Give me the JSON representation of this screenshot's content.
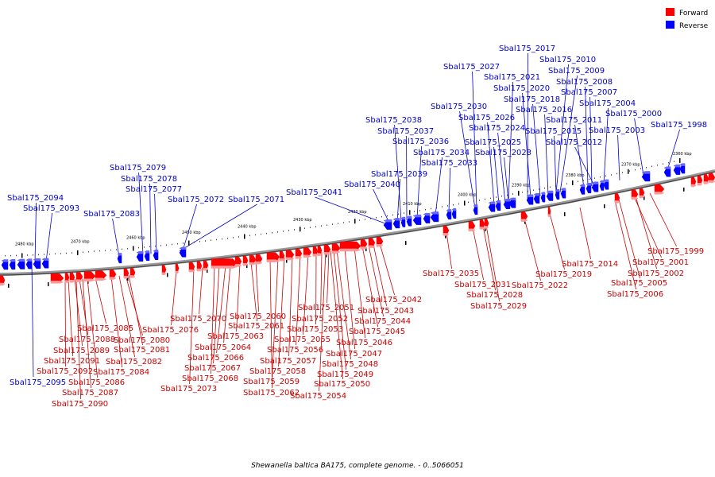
{
  "caption": "Shewanella baltica BA175, complete genome. - 0..5066051",
  "legend": [
    {
      "label": "Forward",
      "color": "#ff0000"
    },
    {
      "label": "Reverse",
      "color": "#0000ff"
    }
  ],
  "colors": {
    "forward": "#ff0000",
    "reverse": "#0000ff",
    "forward_label": "#cc0000",
    "reverse_label": "#0000cc",
    "backbone": "#808080"
  },
  "ticks": [
    "2360 kbp",
    "2370 kbp",
    "2380 kbp",
    "2390 kbp",
    "2400 kbp",
    "2410 kbp",
    "2420 kbp",
    "2430 kbp",
    "2440 kbp",
    "2450 kbp",
    "2460 kbp",
    "2470 kbp",
    "2480 kbp"
  ],
  "reverse_genes": [
    "Sbal175_1998",
    "Sbal175_2000",
    "Sbal175_2003",
    "Sbal175_2004",
    "Sbal175_2007",
    "Sbal175_2008",
    "Sbal175_2009",
    "Sbal175_2010",
    "Sbal175_2011",
    "Sbal175_2012",
    "Sbal175_2015",
    "Sbal175_2016",
    "Sbal175_2017",
    "Sbal175_2018",
    "Sbal175_2020",
    "Sbal175_2021",
    "Sbal175_2023",
    "Sbal175_2024",
    "Sbal175_2025",
    "Sbal175_2026",
    "Sbal175_2027",
    "Sbal175_2030",
    "Sbal175_2033",
    "Sbal175_2034",
    "Sbal175_2036",
    "Sbal175_2037",
    "Sbal175_2038",
    "Sbal175_2039",
    "Sbal175_2040",
    "Sbal175_2041",
    "Sbal175_2071",
    "Sbal175_2072",
    "Sbal175_2077",
    "Sbal175_2078",
    "Sbal175_2079",
    "Sbal175_2083",
    "Sbal175_2093",
    "Sbal175_2094",
    "Sbal175_2095"
  ],
  "forward_genes": [
    "Sbal175_1999",
    "Sbal175_2001",
    "Sbal175_2002",
    "Sbal175_2005",
    "Sbal175_2006",
    "Sbal175_2014",
    "Sbal175_2019",
    "Sbal175_2022",
    "Sbal175_2028",
    "Sbal175_2029",
    "Sbal175_2031",
    "Sbal175_2035",
    "Sbal175_2042",
    "Sbal175_2043",
    "Sbal175_2044",
    "Sbal175_2045",
    "Sbal175_2046",
    "Sbal175_2047",
    "Sbal175_2048",
    "Sbal175_2049",
    "Sbal175_2050",
    "Sbal175_2051",
    "Sbal175_2052",
    "Sbal175_2053",
    "Sbal175_2054",
    "Sbal175_2055",
    "Sbal175_2056",
    "Sbal175_2057",
    "Sbal175_2058",
    "Sbal175_2059",
    "Sbal175_2060",
    "Sbal175_2061",
    "Sbal175_2062",
    "Sbal175_2063",
    "Sbal175_2064",
    "Sbal175_2066",
    "Sbal175_2067",
    "Sbal175_2068",
    "Sbal175_2070",
    "Sbal175_2073",
    "Sbal175_2076",
    "Sbal175_2080",
    "Sbal175_2081",
    "Sbal175_2082",
    "Sbal175_2084",
    "Sbal175_2085",
    "Sbal175_2086",
    "Sbal175_2087",
    "Sbal175_2088",
    "Sbal175_2089",
    "Sbal175_2090",
    "Sbal175_2091",
    "Sbal175_2092"
  ]
}
